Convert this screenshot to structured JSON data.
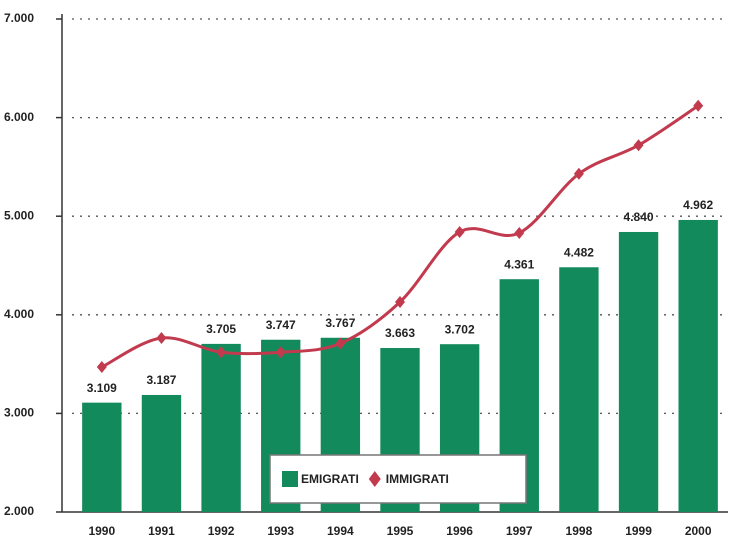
{
  "chart_data": {
    "type": "bar",
    "categories": [
      "1990",
      "1991",
      "1992",
      "1993",
      "1994",
      "1995",
      "1996",
      "1997",
      "1998",
      "1999",
      "2000"
    ],
    "series": [
      {
        "name": "EMIGRATI",
        "type": "bar",
        "color": "#138a5c",
        "values": [
          3109,
          3187,
          3705,
          3747,
          3767,
          3663,
          3702,
          4361,
          4482,
          4840,
          4962
        ],
        "value_labels": [
          "3.109",
          "3.187",
          "3.705",
          "3.747",
          "3.767",
          "3.663",
          "3.702",
          "4.361",
          "4.482",
          "4.840",
          "4.962"
        ]
      },
      {
        "name": "IMMIGRATI",
        "type": "line",
        "color": "#c23a4e",
        "values": [
          3470,
          3765,
          3620,
          3620,
          3710,
          4130,
          4840,
          4830,
          5430,
          5720,
          6120
        ]
      }
    ],
    "ylim": [
      2000,
      7000
    ],
    "yticks": [
      {
        "value": 2000,
        "label": "2.000"
      },
      {
        "value": 3000,
        "label": "3.000"
      },
      {
        "value": 4000,
        "label": "4.000"
      },
      {
        "value": 5000,
        "label": "5.000"
      },
      {
        "value": 6000,
        "label": "6.000"
      },
      {
        "value": 7000,
        "label": "7.000"
      }
    ],
    "grid": true
  }
}
